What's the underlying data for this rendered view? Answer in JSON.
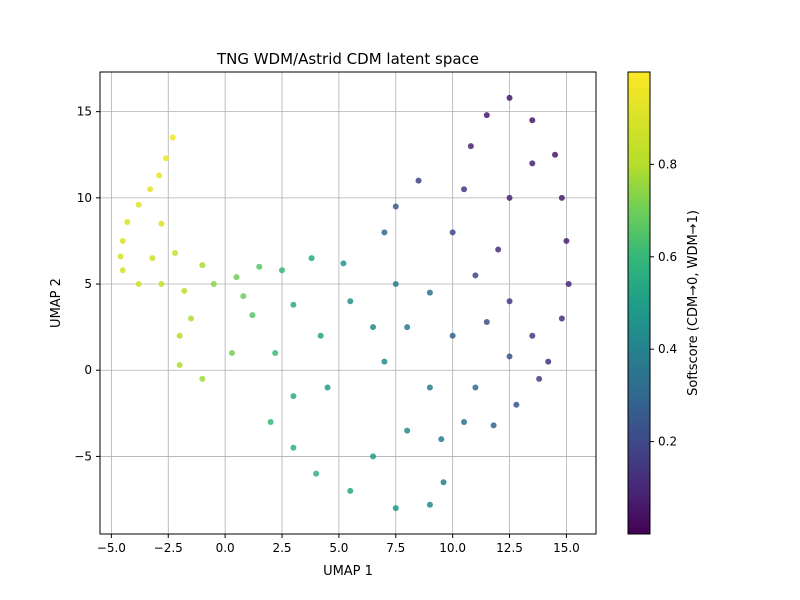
{
  "chart_data": {
    "type": "scatter",
    "title": "TNG WDM/Astrid CDM latent space",
    "xlabel": "UMAP 1",
    "ylabel": "UMAP 2",
    "xlim": [
      -5.5,
      16.3
    ],
    "ylim": [
      -9.5,
      17.3
    ],
    "xticks": [
      -5.0,
      -2.5,
      0.0,
      2.5,
      5.0,
      7.5,
      10.0,
      12.5,
      15.0
    ],
    "xtick_labels": [
      "−5.0",
      "−2.5",
      "0.0",
      "2.5",
      "5.0",
      "7.5",
      "10.0",
      "12.5",
      "15.0"
    ],
    "yticks": [
      -5,
      0,
      5,
      10,
      15
    ],
    "ytick_labels": [
      "−5",
      "0",
      "5",
      "10",
      "15"
    ],
    "grid": true,
    "colormap": "viridis",
    "colorbar": {
      "label": "Softscore (CDM→0, WDM→1)",
      "range": [
        0.0,
        1.0
      ],
      "ticks": [
        0.2,
        0.4,
        0.6,
        0.8
      ],
      "tick_labels": [
        "0.2",
        "0.4",
        "0.6",
        "0.8"
      ]
    },
    "points": [
      [
        -2.3,
        13.5,
        0.96
      ],
      [
        -2.6,
        12.3,
        0.95
      ],
      [
        -2.9,
        11.3,
        0.94
      ],
      [
        -3.3,
        10.5,
        0.93
      ],
      [
        -3.8,
        9.6,
        0.92
      ],
      [
        -4.3,
        8.6,
        0.91
      ],
      [
        -4.5,
        7.5,
        0.9
      ],
      [
        -4.6,
        6.6,
        0.89
      ],
      [
        -4.5,
        5.8,
        0.88
      ],
      [
        -3.8,
        5.0,
        0.86
      ],
      [
        -3.2,
        6.5,
        0.87
      ],
      [
        -2.8,
        8.5,
        0.9
      ],
      [
        -2.2,
        6.8,
        0.85
      ],
      [
        -2.8,
        5.0,
        0.85
      ],
      [
        -1.8,
        4.6,
        0.82
      ],
      [
        -1.0,
        6.1,
        0.78
      ],
      [
        -0.5,
        5.0,
        0.74
      ],
      [
        0.5,
        5.4,
        0.7
      ],
      [
        1.5,
        6.0,
        0.66
      ],
      [
        2.5,
        5.8,
        0.6
      ],
      [
        3.8,
        6.5,
        0.54
      ],
      [
        5.2,
        6.2,
        0.47
      ],
      [
        -1.5,
        3.0,
        0.79
      ],
      [
        -2.0,
        2.0,
        0.8
      ],
      [
        -2.0,
        0.3,
        0.8
      ],
      [
        -1.0,
        -0.5,
        0.77
      ],
      [
        0.3,
        1.0,
        0.71
      ],
      [
        1.2,
        3.2,
        0.66
      ],
      [
        2.2,
        1.0,
        0.61
      ],
      [
        0.8,
        4.3,
        0.7
      ],
      [
        3.0,
        3.8,
        0.56
      ],
      [
        4.2,
        2.0,
        0.52
      ],
      [
        5.5,
        4.0,
        0.46
      ],
      [
        6.5,
        2.5,
        0.43
      ],
      [
        4.5,
        -1.0,
        0.5
      ],
      [
        3.0,
        -1.5,
        0.56
      ],
      [
        2.0,
        -3.0,
        0.6
      ],
      [
        3.0,
        -4.5,
        0.58
      ],
      [
        4.0,
        -6.0,
        0.58
      ],
      [
        5.5,
        -7.0,
        0.53
      ],
      [
        7.5,
        -8.0,
        0.48
      ],
      [
        9.0,
        -7.8,
        0.43
      ],
      [
        9.6,
        -6.5,
        0.38
      ],
      [
        6.5,
        -5.0,
        0.5
      ],
      [
        8.0,
        -3.5,
        0.43
      ],
      [
        9.5,
        -4.0,
        0.38
      ],
      [
        10.5,
        -3.0,
        0.33
      ],
      [
        11.8,
        -3.2,
        0.28
      ],
      [
        12.8,
        -2.0,
        0.24
      ],
      [
        11.0,
        -1.0,
        0.3
      ],
      [
        9.0,
        -1.0,
        0.38
      ],
      [
        7.0,
        0.5,
        0.44
      ],
      [
        8.0,
        2.5,
        0.38
      ],
      [
        9.0,
        4.5,
        0.33
      ],
      [
        7.5,
        5.0,
        0.38
      ],
      [
        7.0,
        8.0,
        0.3
      ],
      [
        7.5,
        9.5,
        0.25
      ],
      [
        8.5,
        11.0,
        0.18
      ],
      [
        10.0,
        8.0,
        0.2
      ],
      [
        10.5,
        10.5,
        0.14
      ],
      [
        10.8,
        13.0,
        0.09
      ],
      [
        11.5,
        14.8,
        0.07
      ],
      [
        12.5,
        15.8,
        0.06
      ],
      [
        13.5,
        14.5,
        0.06
      ],
      [
        14.5,
        12.5,
        0.06
      ],
      [
        14.8,
        10.0,
        0.07
      ],
      [
        15.0,
        7.5,
        0.08
      ],
      [
        15.1,
        5.0,
        0.1
      ],
      [
        14.8,
        3.0,
        0.12
      ],
      [
        14.2,
        0.5,
        0.14
      ],
      [
        13.5,
        2.0,
        0.16
      ],
      [
        12.5,
        4.0,
        0.15
      ],
      [
        12.0,
        7.0,
        0.12
      ],
      [
        12.5,
        10.0,
        0.09
      ],
      [
        13.5,
        12.0,
        0.08
      ],
      [
        11.0,
        5.5,
        0.2
      ],
      [
        10.0,
        2.0,
        0.28
      ],
      [
        12.5,
        0.8,
        0.22
      ],
      [
        13.8,
        -0.5,
        0.17
      ],
      [
        11.5,
        2.8,
        0.22
      ]
    ]
  }
}
